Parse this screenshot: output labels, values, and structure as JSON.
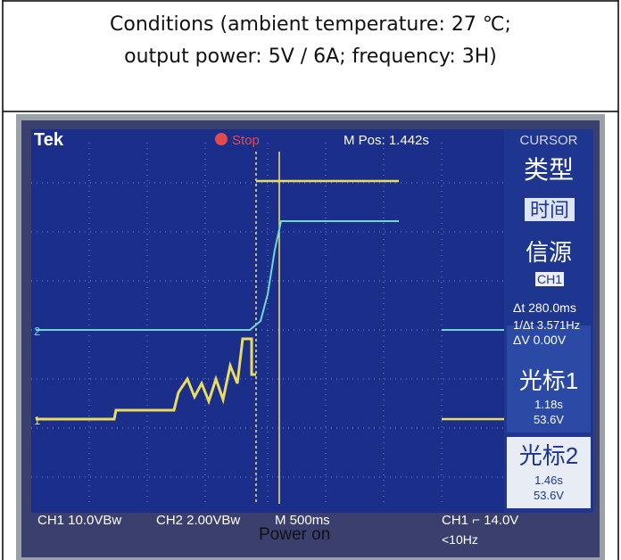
{
  "conditions": {
    "line1": "Conditions (ambient temperature: 27 ℃;",
    "line2": "output power: 5V / 6A; frequency: 3H)"
  },
  "scope": {
    "brand": "Tek",
    "state": "Stop",
    "mpos": "M Pos: 1.442s",
    "menu": "CURSOR",
    "type_label": "类型",
    "type_value": "时间",
    "source_label": "信源",
    "source_value": "CH1",
    "delta_t": "Δt 280.0ms",
    "inv_delta_t": "1/Δt 3.571Hz",
    "delta_v": "ΔV 0.00V",
    "cursor1_label": "光标1",
    "cursor1_time": "1.18s",
    "cursor1_volt": "53.6V",
    "cursor2_label": "光标2",
    "cursor2_time": "1.46s",
    "cursor2_volt": "53.6V",
    "ch1_scale": "CH1 10.0VBw",
    "ch2_scale": "CH2 2.00VBw",
    "time_scale": "M 500ms",
    "trigger": "CH1 ⌐ 14.0V",
    "freq": "<10Hz",
    "ch2_marker": "2",
    "ch1_marker": "1"
  },
  "caption": "Power on"
}
